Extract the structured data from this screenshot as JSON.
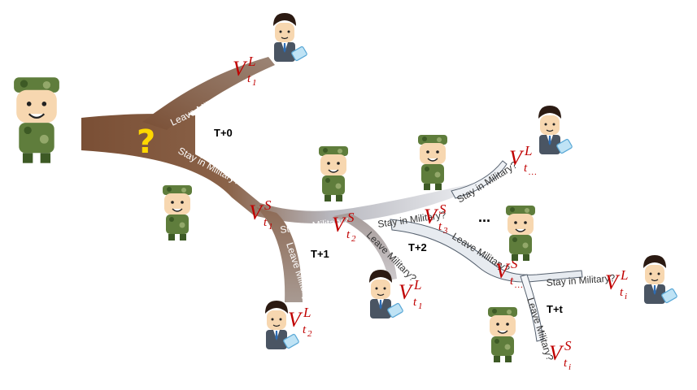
{
  "question_mark": "?",
  "ellipsis": "...",
  "branch_labels": {
    "leave_t0": "Leave Military?",
    "stay_t0": "Stay in Military?",
    "stay_t1": "Stay in Military?",
    "leave_t1": "Leave Military?",
    "stay_t2": "Stay in Military?",
    "leave_t2": "Leave Military?",
    "stay_t3": "Stay in Military?",
    "leave_t3": "Leave Military?",
    "stay_tt": "Stay in Military?",
    "leave_tt": "Leave Military?"
  },
  "time_labels": {
    "t0": "T+0",
    "t1": "T+1",
    "t2": "T+2",
    "tt": "T+t"
  },
  "value_labels": {
    "v_l_t1_top": {
      "main": "V",
      "sup": "L",
      "sub": "t",
      "subsub": "1"
    },
    "v_s_t1": {
      "main": "V",
      "sup": "S",
      "sub": "t",
      "subsub": "1"
    },
    "v_s_t2": {
      "main": "V",
      "sup": "S",
      "sub": "t",
      "subsub": "2"
    },
    "v_s_t3": {
      "main": "V",
      "sup": "S",
      "sub": "t",
      "subsub": "3"
    },
    "v_l_t2": {
      "main": "V",
      "sup": "L",
      "sub": "t",
      "subsub": "2"
    },
    "v_l_t1_mid": {
      "main": "V",
      "sup": "L",
      "sub": "t",
      "subsub": "1"
    },
    "v_l_tdots": {
      "main": "V",
      "sup": "L",
      "sub": "t",
      "subsub": "…"
    },
    "v_s_tdots": {
      "main": "V",
      "sup": "S",
      "sub": "t",
      "subsub": "…"
    },
    "v_l_ti": {
      "main": "V",
      "sup": "L",
      "sub": "t",
      "subsub": "i"
    },
    "v_s_ti": {
      "main": "V",
      "sup": "S",
      "sub": "t",
      "subsub": "i"
    }
  },
  "colors": {
    "trunk_dark": "#7a4f35",
    "trunk_light": "#d9e1ea",
    "value_red": "#c00000",
    "question_yellow": "#ffd700"
  },
  "icons": [
    "soldier-icon",
    "businessman-icon"
  ]
}
